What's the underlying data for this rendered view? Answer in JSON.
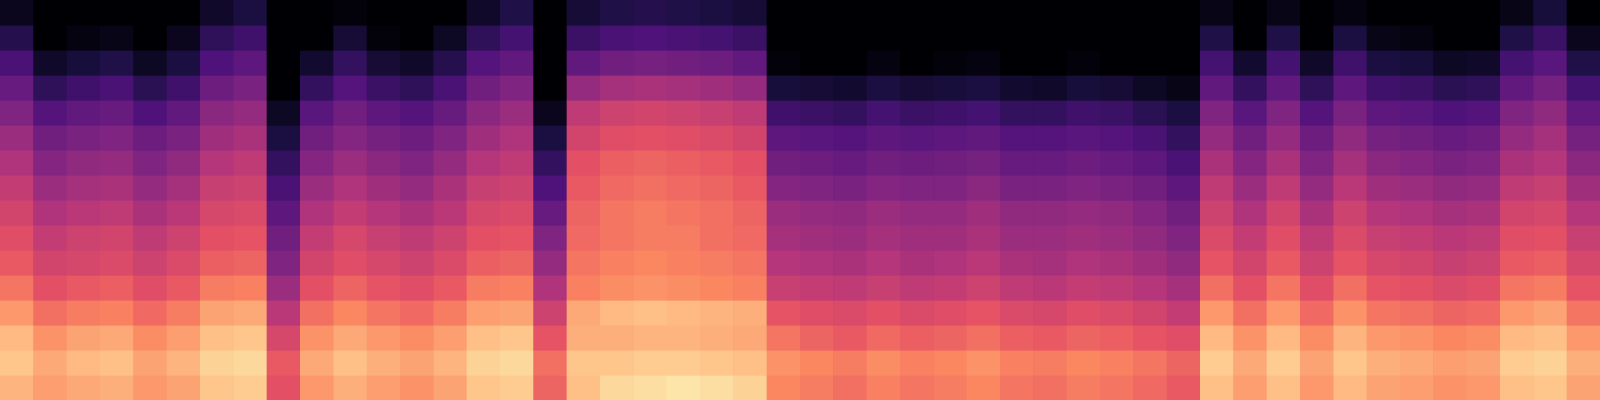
{
  "chart_data": {
    "type": "heatmap",
    "tick_labels": false,
    "xlim": [
      0,
      48
    ],
    "ylim": [
      0,
      16
    ],
    "zlim": [
      -80,
      0
    ],
    "z": [
      [
        -12,
        -9,
        -11,
        -17,
        -23,
        -28,
        -31,
        -34,
        -37,
        -41,
        -45,
        -50,
        -55,
        -61,
        -68,
        -76
      ],
      [
        -16,
        -14,
        -18,
        -24,
        -30,
        -34,
        -37,
        -41,
        -45,
        -49,
        -53,
        -59,
        -66,
        -74,
        -80,
        -80
      ],
      [
        -14,
        -11,
        -15,
        -22,
        -28,
        -33,
        -35,
        -39,
        -43,
        -47,
        -51,
        -56,
        -63,
        -71,
        -78,
        -80
      ],
      [
        -13,
        -10,
        -14,
        -21,
        -27,
        -32,
        -34,
        -38,
        -42,
        -46,
        -50,
        -55,
        -61,
        -69,
        -77,
        -80
      ],
      [
        -17,
        -15,
        -19,
        -25,
        -31,
        -35,
        -38,
        -42,
        -46,
        -50,
        -54,
        -60,
        -67,
        -75,
        -80,
        -80
      ],
      [
        -15,
        -12,
        -16,
        -22,
        -28,
        -32,
        -35,
        -39,
        -43,
        -47,
        -51,
        -56,
        -63,
        -70,
        -76,
        -80
      ],
      [
        -9,
        -7,
        -10,
        -15,
        -22,
        -27,
        -30,
        -33,
        -36,
        -40,
        -44,
        -48,
        -54,
        -60,
        -66,
        -74
      ],
      [
        -8,
        -6,
        -9,
        -14,
        -21,
        -26,
        -29,
        -32,
        -35,
        -38,
        -42,
        -46,
        -51,
        -57,
        -63,
        -70
      ],
      [
        -30,
        -28,
        -33,
        -39,
        -45,
        -50,
        -53,
        -57,
        -61,
        -65,
        -70,
        -75,
        -80,
        -80,
        -80,
        -80
      ],
      [
        -17,
        -14,
        -18,
        -24,
        -30,
        -34,
        -37,
        -41,
        -45,
        -49,
        -53,
        -58,
        -65,
        -73,
        -80,
        -80
      ],
      [
        -13,
        -10,
        -14,
        -20,
        -26,
        -31,
        -33,
        -37,
        -41,
        -45,
        -49,
        -53,
        -59,
        -65,
        -72,
        -79
      ],
      [
        -16,
        -13,
        -17,
        -23,
        -29,
        -33,
        -36,
        -40,
        -44,
        -48,
        -52,
        -57,
        -64,
        -72,
        -79,
        -80
      ],
      [
        -18,
        -15,
        -19,
        -25,
        -31,
        -35,
        -38,
        -42,
        -46,
        -50,
        -54,
        -59,
        -66,
        -74,
        -80,
        -80
      ],
      [
        -15,
        -12,
        -16,
        -22,
        -28,
        -32,
        -35,
        -39,
        -42,
        -46,
        -50,
        -55,
        -61,
        -68,
        -75,
        -80
      ],
      [
        -9,
        -7,
        -10,
        -16,
        -22,
        -27,
        -30,
        -33,
        -36,
        -40,
        -44,
        -48,
        -53,
        -59,
        -66,
        -74
      ],
      [
        -8,
        -6,
        -9,
        -15,
        -21,
        -26,
        -29,
        -32,
        -35,
        -38,
        -41,
        -45,
        -50,
        -56,
        -62,
        -69
      ],
      [
        -26,
        -24,
        -29,
        -35,
        -41,
        -46,
        -50,
        -55,
        -60,
        -65,
        -70,
        -76,
        -80,
        -80,
        -80,
        -80
      ],
      [
        -10,
        -9,
        -13,
        -14,
        -21,
        -23,
        -25,
        -26,
        -28,
        -30,
        -34,
        -38,
        -46,
        -56,
        -64,
        -72
      ],
      [
        -6,
        -9,
        -13,
        -11,
        -19,
        -21,
        -23,
        -23,
        -25,
        -27,
        -31,
        -35,
        -43,
        -53,
        -61,
        -69
      ],
      [
        -5,
        -8,
        -12,
        -10,
        -18,
        -20,
        -22,
        -22,
        -24,
        -26,
        -30,
        -34,
        -42,
        -52,
        -60,
        -68
      ],
      [
        -4,
        -8,
        -12,
        -11,
        -19,
        -21,
        -22,
        -23,
        -25,
        -27,
        -31,
        -35,
        -43,
        -53,
        -61,
        -69
      ],
      [
        -5,
        -9,
        -13,
        -12,
        -20,
        -22,
        -24,
        -24,
        -26,
        -28,
        -32,
        -36,
        -44,
        -54,
        -62,
        -70
      ],
      [
        -7,
        -10,
        -14,
        -13,
        -21,
        -23,
        -25,
        -26,
        -28,
        -30,
        -34,
        -38,
        -46,
        -56,
        -64,
        -72
      ],
      [
        -20,
        -18,
        -23,
        -29,
        -36,
        -40,
        -43,
        -45,
        -49,
        -53,
        -57,
        -63,
        -71,
        -79,
        -80,
        -80
      ],
      [
        -22,
        -20,
        -26,
        -31,
        -37,
        -41,
        -44,
        -46,
        -50,
        -54,
        -58,
        -64,
        -72,
        -80,
        -80,
        -80
      ],
      [
        -24,
        -22,
        -28,
        -32,
        -38,
        -42,
        -45,
        -47,
        -51,
        -55,
        -59,
        -65,
        -73,
        -80,
        -80,
        -80
      ],
      [
        -21,
        -19,
        -25,
        -30,
        -36,
        -40,
        -43,
        -45,
        -49,
        -53,
        -57,
        -62,
        -70,
        -78,
        -80,
        -80
      ],
      [
        -23,
        -21,
        -27,
        -32,
        -38,
        -42,
        -44,
        -46,
        -50,
        -54,
        -58,
        -64,
        -72,
        -80,
        -80,
        -80
      ],
      [
        -22,
        -20,
        -26,
        -31,
        -37,
        -41,
        -44,
        -46,
        -50,
        -53,
        -57,
        -63,
        -71,
        -79,
        -80,
        -80
      ],
      [
        -20,
        -18,
        -24,
        -29,
        -35,
        -39,
        -42,
        -44,
        -48,
        -52,
        -56,
        -62,
        -70,
        -78,
        -80,
        -80
      ],
      [
        -23,
        -21,
        -27,
        -32,
        -38,
        -42,
        -45,
        -47,
        -51,
        -55,
        -59,
        -65,
        -73,
        -80,
        -80,
        -80
      ],
      [
        -24,
        -22,
        -28,
        -33,
        -39,
        -43,
        -45,
        -47,
        -51,
        -55,
        -59,
        -65,
        -74,
        -80,
        -80,
        -80
      ],
      [
        -22,
        -20,
        -26,
        -31,
        -37,
        -41,
        -44,
        -46,
        -50,
        -54,
        -58,
        -63,
        -71,
        -79,
        -80,
        -80
      ],
      [
        -23,
        -21,
        -27,
        -32,
        -38,
        -42,
        -45,
        -47,
        -51,
        -55,
        -59,
        -64,
        -72,
        -80,
        -80,
        -80
      ],
      [
        -25,
        -23,
        -29,
        -34,
        -40,
        -44,
        -47,
        -49,
        -53,
        -57,
        -61,
        -67,
        -75,
        -80,
        -80,
        -80
      ],
      [
        -28,
        -26,
        -31,
        -37,
        -43,
        -47,
        -50,
        -53,
        -57,
        -61,
        -65,
        -70,
        -77,
        -80,
        -80,
        -80
      ],
      [
        -10,
        -8,
        -11,
        -17,
        -24,
        -29,
        -32,
        -35,
        -38,
        -42,
        -46,
        -50,
        -56,
        -62,
        -69,
        -77
      ],
      [
        -16,
        -14,
        -18,
        -24,
        -30,
        -34,
        -37,
        -41,
        -45,
        -49,
        -53,
        -58,
        -65,
        -73,
        -80,
        -80
      ],
      [
        -10,
        -8,
        -11,
        -17,
        -23,
        -28,
        -31,
        -34,
        -38,
        -42,
        -46,
        -50,
        -56,
        -62,
        -69,
        -77
      ],
      [
        -17,
        -15,
        -19,
        -25,
        -31,
        -35,
        -38,
        -42,
        -46,
        -50,
        -54,
        -59,
        -66,
        -74,
        -80,
        -80
      ],
      [
        -11,
        -9,
        -12,
        -18,
        -24,
        -29,
        -32,
        -35,
        -39,
        -43,
        -47,
        -51,
        -57,
        -63,
        -70,
        -78
      ],
      [
        -15,
        -13,
        -17,
        -23,
        -29,
        -33,
        -36,
        -40,
        -44,
        -48,
        -52,
        -57,
        -63,
        -70,
        -77,
        -80
      ],
      [
        -16,
        -14,
        -18,
        -24,
        -30,
        -34,
        -37,
        -41,
        -45,
        -49,
        -53,
        -58,
        -64,
        -71,
        -78,
        -80
      ],
      [
        -18,
        -16,
        -20,
        -26,
        -32,
        -36,
        -39,
        -43,
        -47,
        -51,
        -55,
        -60,
        -67,
        -75,
        -80,
        -80
      ],
      [
        -17,
        -15,
        -19,
        -25,
        -31,
        -35,
        -38,
        -42,
        -46,
        -50,
        -54,
        -59,
        -66,
        -74,
        -80,
        -80
      ],
      [
        -10,
        -8,
        -11,
        -17,
        -23,
        -28,
        -31,
        -34,
        -38,
        -42,
        -46,
        -50,
        -56,
        -62,
        -69,
        -77
      ],
      [
        -9,
        -7,
        -10,
        -15,
        -22,
        -27,
        -30,
        -33,
        -36,
        -40,
        -43,
        -47,
        -52,
        -58,
        -64,
        -71
      ],
      [
        -15,
        -13,
        -17,
        -23,
        -29,
        -33,
        -36,
        -40,
        -44,
        -48,
        -52,
        -56,
        -62,
        -69,
        -76,
        -80
      ]
    ]
  }
}
